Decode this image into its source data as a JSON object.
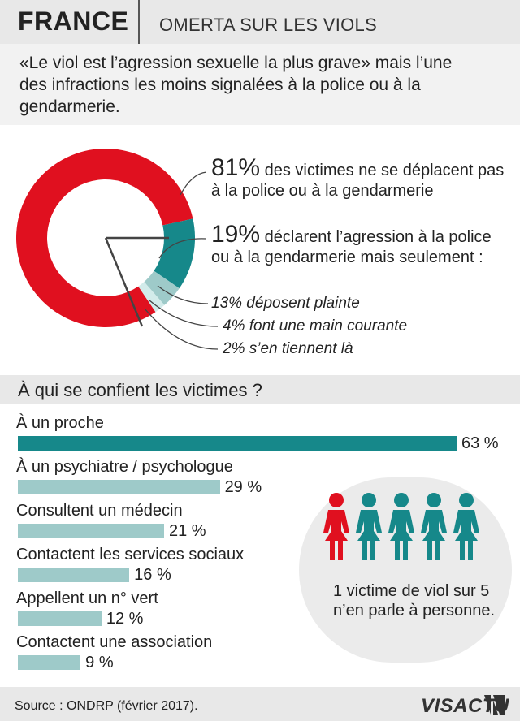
{
  "header": {
    "country": "FRANCE",
    "subtitle": "OMERTA SUR LES VIOLS"
  },
  "intro": "«Le viol est l’agression sexuelle la plus grave» mais l’une des infractions les moins signalées à la police ou à la gendarmerie.",
  "donut": {
    "stat1": {
      "pct": "81",
      "unit": "%",
      "text": "des victimes ne se déplacent pas à la police ou à la gendarmerie"
    },
    "stat2": {
      "pct": "19",
      "unit": "%",
      "text": "déclarent l’agression à la police ou à la gendarmerie mais seulement :"
    },
    "sub1": "13% déposent plainte",
    "sub2": "4% font une main courante",
    "sub3": "2% s’en tiennent là"
  },
  "section_title": "À qui se confient les victimes ?",
  "callout": {
    "text": "1 victime de viol sur 5 n’en parle à personne."
  },
  "footer": {
    "source": "Source : ONDRP (février 2017).",
    "logo": "VISACTU"
  },
  "colors": {
    "red": "#e0101f",
    "teal": "#16888a",
    "light_teal": "#9ecac9",
    "pale_teal": "#d2ebea"
  },
  "chart_data": [
    {
      "type": "pie",
      "categories": [
        "ne se déplacent pas",
        "déposent plainte",
        "font une main courante",
        "s’en tiennent là"
      ],
      "values": [
        81,
        13,
        4,
        2
      ],
      "colors": [
        "#e0101f",
        "#16888a",
        "#9ecac9",
        "#d2ebea"
      ]
    },
    {
      "type": "bar",
      "title": "À qui se confient les victimes ?",
      "categories": [
        "À un proche",
        "À un psychiatre / psychologue",
        "Consultent un médecin",
        "Contactent les services sociaux",
        "Appellent un n° vert",
        "Contactent une association"
      ],
      "values": [
        63,
        29,
        21,
        16,
        12,
        9
      ],
      "value_labels": [
        "63 %",
        "29 %",
        "21 %",
        "16 %",
        "12 %",
        "9 %"
      ],
      "colors": [
        "#16888a",
        "#9ecac9",
        "#9ecac9",
        "#9ecac9",
        "#9ecac9",
        "#9ecac9"
      ],
      "xlim": [
        0,
        63
      ]
    },
    {
      "type": "pictogram",
      "categories": [
        "n’en parle à personne",
        "en parle"
      ],
      "values": [
        1,
        4
      ],
      "colors": [
        "#e0101f",
        "#16888a"
      ]
    }
  ]
}
